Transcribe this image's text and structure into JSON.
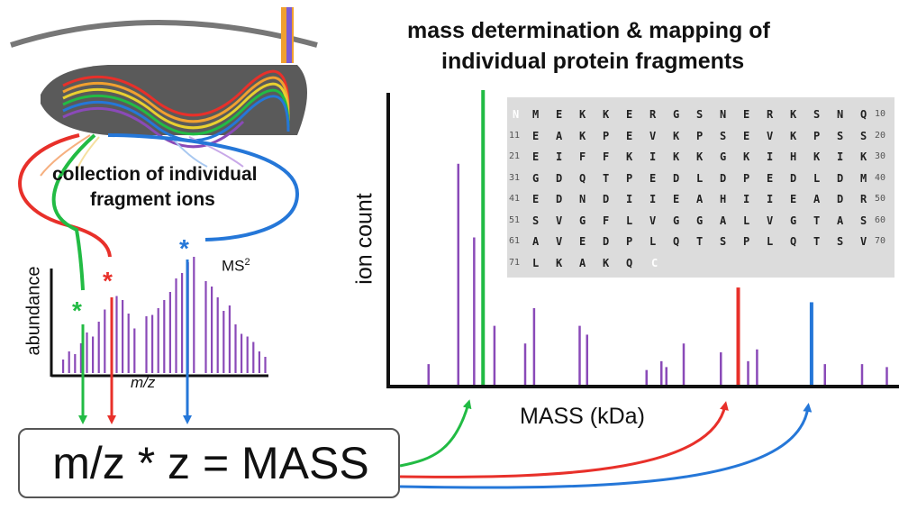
{
  "title": {
    "line1": "mass determination & mapping of",
    "line2": "individual protein fragments"
  },
  "left_panel": {
    "collection_label_line1": "collection of individual",
    "collection_label_line2": "fragment ions",
    "star_symbol": "*",
    "ms2_label": "MS",
    "ms2_superscript": "2"
  },
  "equation": {
    "text": "m/z * z = MASS"
  },
  "colors": {
    "green": "#22bb44",
    "red": "#e8302a",
    "blue": "#2577d8",
    "purple": "#8a4ab8",
    "sequence_panel": "#dcdcdc"
  },
  "chart_data": [
    {
      "type": "bar",
      "name": "MS2 spectrum",
      "xlabel": "m/z",
      "ylabel": "abundance",
      "values": [
        0.1,
        0.16,
        0.14,
        0.22,
        0.3,
        0.27,
        0.38,
        0.47,
        0.52,
        0.57,
        0.54,
        0.44,
        0.33,
        0.37,
        0.42,
        0.43,
        0.48,
        0.54,
        0.6,
        0.7,
        0.74,
        0.82,
        0.86,
        0.8,
        0.68,
        0.64,
        0.56,
        0.46,
        0.5,
        0.36,
        0.29,
        0.27,
        0.23,
        0.16,
        0.12
      ],
      "highlighted": [
        {
          "index": 8,
          "color": "green"
        },
        {
          "index": 13,
          "color": "red"
        },
        {
          "index": 23,
          "color": "blue"
        }
      ],
      "grid": false
    },
    {
      "type": "bar",
      "name": "fragment masses",
      "xlabel": "MASS (kDa)",
      "ylabel": "ion count",
      "series": [
        {
          "name": "fragments",
          "color": "purple",
          "points": [
            [
              0.065,
              0.07
            ],
            [
              0.125,
              0.75
            ],
            [
              0.157,
              0.5
            ],
            [
              0.198,
              0.2
            ],
            [
              0.26,
              0.14
            ],
            [
              0.278,
              0.26
            ],
            [
              0.37,
              0.2
            ],
            [
              0.385,
              0.17
            ],
            [
              0.505,
              0.05
            ],
            [
              0.535,
              0.08
            ],
            [
              0.545,
              0.06
            ],
            [
              0.58,
              0.14
            ],
            [
              0.655,
              0.11
            ],
            [
              0.71,
              0.08
            ],
            [
              0.728,
              0.12
            ],
            [
              0.865,
              0.07
            ],
            [
              0.94,
              0.07
            ],
            [
              0.99,
              0.06
            ]
          ]
        },
        {
          "name": "green fragment",
          "color": "green",
          "points": [
            [
              0.175,
              1.0
            ]
          ]
        },
        {
          "name": "red fragment",
          "color": "red",
          "points": [
            [
              0.69,
              0.33
            ]
          ]
        },
        {
          "name": "blue fragment",
          "color": "blue",
          "points": [
            [
              0.838,
              0.28
            ]
          ]
        }
      ],
      "ylim": [
        0,
        1
      ],
      "grid": false
    }
  ],
  "sequence": {
    "n_terminus": "N",
    "c_terminus": "C",
    "rows": [
      {
        "start": "",
        "residues": [
          "M",
          "E",
          "K",
          "K",
          "E",
          "R",
          "G",
          "S",
          "N",
          "E",
          "R",
          "K",
          "S",
          "N",
          "Q"
        ],
        "end": "10"
      },
      {
        "start": "11",
        "residues": [
          "E",
          "A",
          "K",
          "P",
          "E",
          "V",
          "K",
          "P",
          "S",
          "E",
          "V",
          "K",
          "P",
          "S",
          "S"
        ],
        "end": "20"
      },
      {
        "start": "21",
        "residues": [
          "E",
          "I",
          "F",
          "F",
          "K",
          "I",
          "K",
          "K",
          "G",
          "K",
          "I",
          "H",
          "K",
          "I",
          "K"
        ],
        "end": "30"
      },
      {
        "start": "31",
        "residues": [
          "G",
          "D",
          "Q",
          "T",
          "P",
          "E",
          "D",
          "L",
          "D",
          "P",
          "E",
          "D",
          "L",
          "D",
          "M"
        ],
        "end": "40"
      },
      {
        "start": "41",
        "residues": [
          "E",
          "D",
          "N",
          "D",
          "I",
          "I",
          "E",
          "A",
          "H",
          "I",
          "I",
          "E",
          "A",
          "D",
          "R"
        ],
        "end": "50"
      },
      {
        "start": "51",
        "residues": [
          "S",
          "V",
          "G",
          "F",
          "L",
          "V",
          "G",
          "G",
          "A",
          "L",
          "V",
          "G",
          "T",
          "A",
          "S"
        ],
        "end": "60"
      },
      {
        "start": "61",
        "residues": [
          "A",
          "V",
          "E",
          "D",
          "P",
          "L",
          "Q",
          "T",
          "S",
          "P",
          "L",
          "Q",
          "T",
          "S",
          "V"
        ],
        "end": "70"
      },
      {
        "start": "71",
        "residues": [
          "L",
          "K",
          "A",
          "K",
          "Q"
        ],
        "end": ""
      }
    ]
  }
}
